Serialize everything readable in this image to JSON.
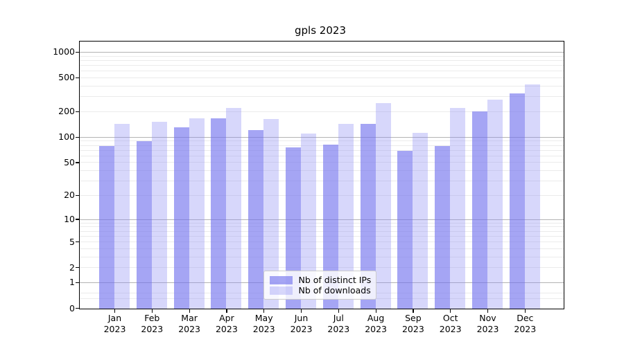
{
  "figure": {
    "title": "gpls 2023"
  },
  "chart_data": {
    "type": "bar",
    "title": "gpls 2023",
    "categories": [
      "Jan 2023",
      "Feb 2023",
      "Mar 2023",
      "Apr 2023",
      "May 2023",
      "Jun 2023",
      "Jul 2023",
      "Aug 2023",
      "Sep 2023",
      "Oct 2023",
      "Nov 2023",
      "Dec 2023"
    ],
    "x_tick_month_labels": [
      "Jan",
      "Feb",
      "Mar",
      "Apr",
      "May",
      "Jun",
      "Jul",
      "Aug",
      "Sep",
      "Oct",
      "Nov",
      "Dec"
    ],
    "x_tick_year_label": "2023",
    "series": [
      {
        "name": "Nb of distinct IPs",
        "color": "rgba(112,112,238,0.63)",
        "values": [
          80,
          91,
          131,
          170,
          123,
          76,
          82,
          144,
          70,
          80,
          202,
          334
        ]
      },
      {
        "name": "Nb of downloads",
        "color": "rgba(140,140,244,0.35)",
        "values": [
          145,
          153,
          168,
          225,
          165,
          112,
          144,
          253,
          114,
          222,
          280,
          420
        ]
      }
    ],
    "yscale": "log1p",
    "ylim": [
      0,
      1320
    ],
    "yticks": [
      1000,
      500,
      200,
      100,
      50,
      20,
      10,
      5,
      2,
      1,
      0
    ],
    "grid": true,
    "legend": {
      "position": "lower center",
      "entries": [
        "Nb of distinct IPs",
        "Nb of downloads"
      ]
    },
    "colors": {
      "major_grid": "#b3b3b3",
      "minor_grid": "#ebebeb",
      "frame": "#000000"
    }
  }
}
